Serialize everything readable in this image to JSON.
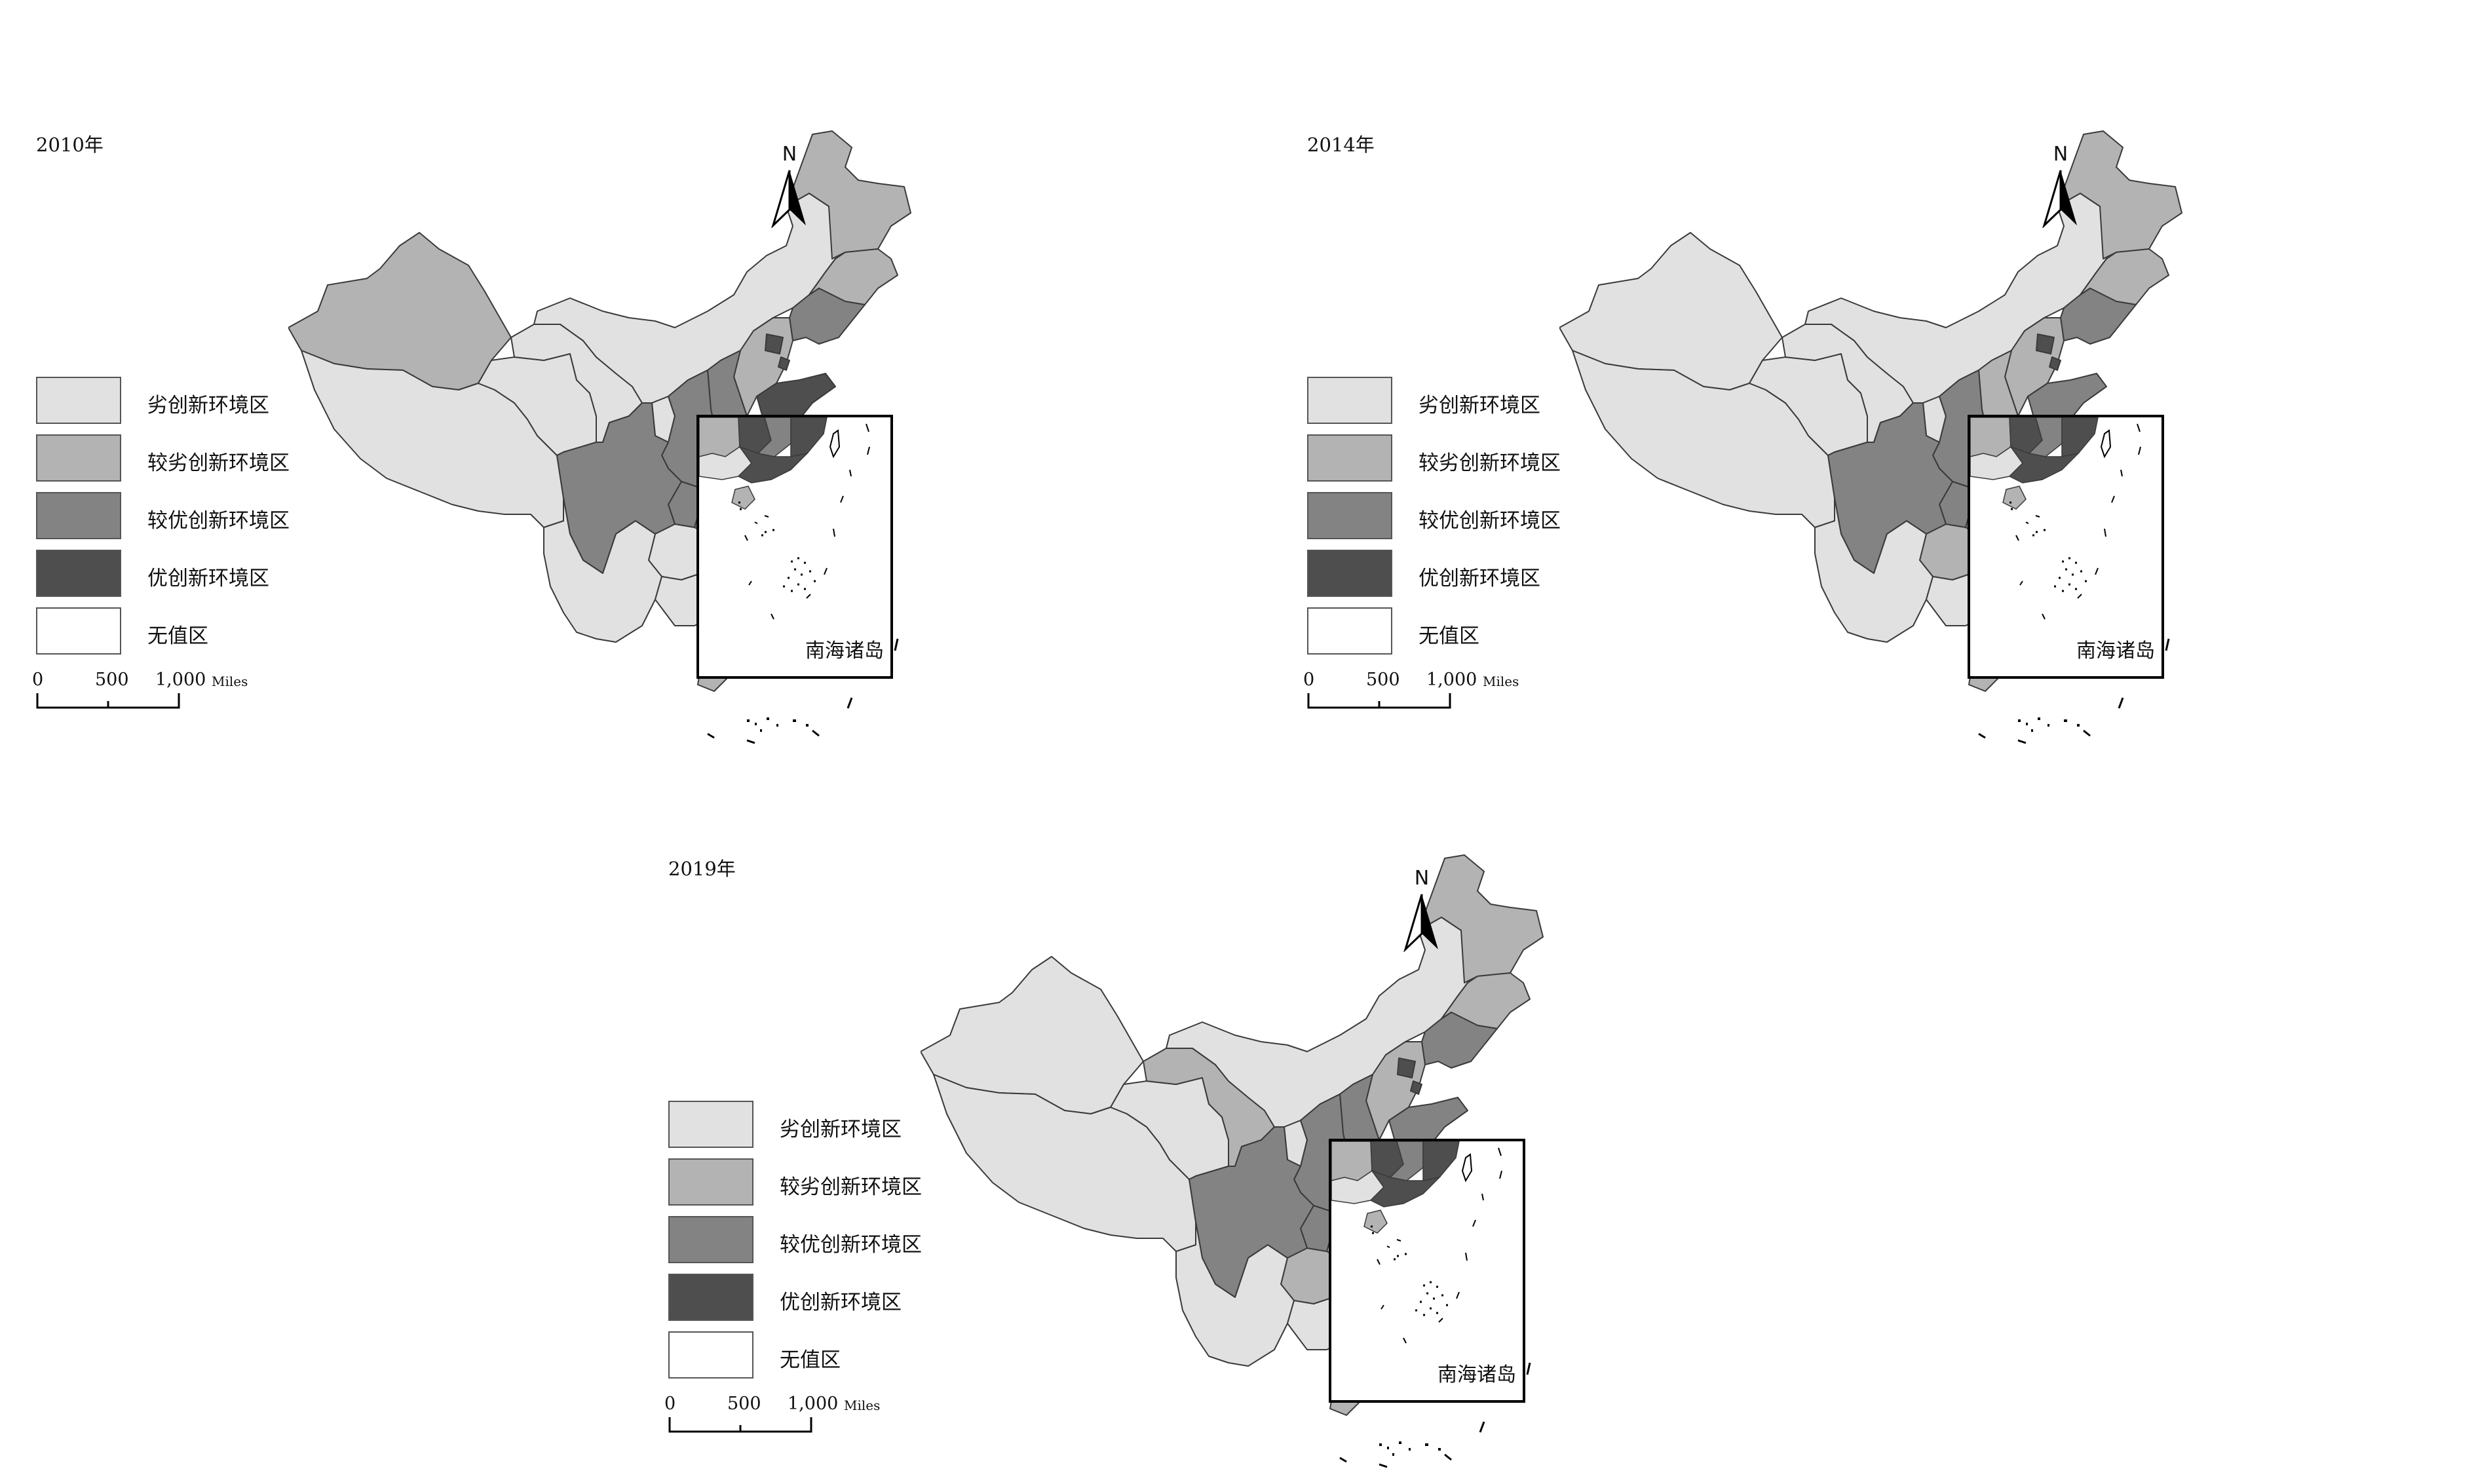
{
  "colors": {
    "poor": "#e1e1e1",
    "fairly_poor": "#b3b3b3",
    "fairly_good": "#838383",
    "good": "#4e4e4e",
    "none": "#ffffff",
    "border": "#3a3a3a"
  },
  "legend": [
    {
      "label": "劣创新环境区",
      "level": "poor"
    },
    {
      "label": "较劣创新环境区",
      "level": "fairly_poor"
    },
    {
      "label": "较优创新环境区",
      "level": "fairly_good"
    },
    {
      "label": "优创新环境区",
      "level": "good"
    },
    {
      "label": "无值区",
      "level": "none"
    }
  ],
  "scale": {
    "ticks": [
      "0",
      "500",
      "1,000"
    ],
    "unit": "Miles"
  },
  "north_label": "N",
  "inset_label": "南海诸岛",
  "maps": [
    {
      "year": "2010年",
      "regions": {
        "xinjiang": "fairly_poor",
        "tibet": "poor",
        "qinghai": "poor",
        "gansu": "poor",
        "neimenggu": "poor",
        "heilongjiang": "fairly_poor",
        "jilin": "fairly_poor",
        "liaoning": "fairly_good",
        "beijing": "good",
        "tianjin": "good",
        "hebei": "fairly_poor",
        "shanxi": "fairly_good",
        "shaanxi": "fairly_good",
        "ningxia": "poor",
        "shandong": "good",
        "henan": "fairly_good",
        "jiangsu": "good",
        "anhui": "fairly_good",
        "shanghai": "good",
        "zhejiang": "good",
        "hubei": "fairly_good",
        "sichuan": "fairly_good",
        "chongqing": "fairly_good",
        "guizhou": "poor",
        "yunnan": "poor",
        "hunan": "fairly_good",
        "jiangxi": "fairly_poor",
        "fujian": "fairly_good",
        "guangxi": "poor",
        "guangdong": "good",
        "hainan": "fairly_poor",
        "taiwan": "none"
      }
    },
    {
      "year": "2014年",
      "regions": {
        "xinjiang": "poor",
        "tibet": "poor",
        "qinghai": "poor",
        "gansu": "poor",
        "neimenggu": "poor",
        "heilongjiang": "fairly_poor",
        "jilin": "fairly_poor",
        "liaoning": "fairly_good",
        "beijing": "good",
        "tianjin": "good",
        "hebei": "fairly_poor",
        "shanxi": "fairly_poor",
        "shaanxi": "fairly_good",
        "ningxia": "poor",
        "shandong": "fairly_good",
        "henan": "fairly_good",
        "jiangsu": "good",
        "anhui": "fairly_good",
        "shanghai": "good",
        "zhejiang": "good",
        "hubei": "fairly_good",
        "sichuan": "fairly_good",
        "chongqing": "fairly_good",
        "guizhou": "fairly_poor",
        "yunnan": "poor",
        "hunan": "fairly_good",
        "jiangxi": "fairly_poor",
        "fujian": "good",
        "guangxi": "poor",
        "guangdong": "good",
        "hainan": "fairly_poor",
        "taiwan": "none"
      }
    },
    {
      "year": "2019年",
      "regions": {
        "xinjiang": "poor",
        "tibet": "poor",
        "qinghai": "poor",
        "gansu": "fairly_poor",
        "neimenggu": "poor",
        "heilongjiang": "fairly_poor",
        "jilin": "fairly_poor",
        "liaoning": "fairly_good",
        "beijing": "good",
        "tianjin": "good",
        "hebei": "fairly_poor",
        "shanxi": "fairly_good",
        "shaanxi": "fairly_good",
        "ningxia": "poor",
        "shandong": "fairly_good",
        "henan": "fairly_good",
        "jiangsu": "good",
        "anhui": "fairly_good",
        "shanghai": "good",
        "zhejiang": "good",
        "hubei": "fairly_good",
        "sichuan": "fairly_good",
        "chongqing": "fairly_good",
        "guizhou": "fairly_poor",
        "yunnan": "poor",
        "hunan": "fairly_poor",
        "jiangxi": "fairly_good",
        "fujian": "good",
        "guangxi": "poor",
        "guangdong": "good",
        "hainan": "fairly_poor",
        "taiwan": "none"
      }
    }
  ]
}
